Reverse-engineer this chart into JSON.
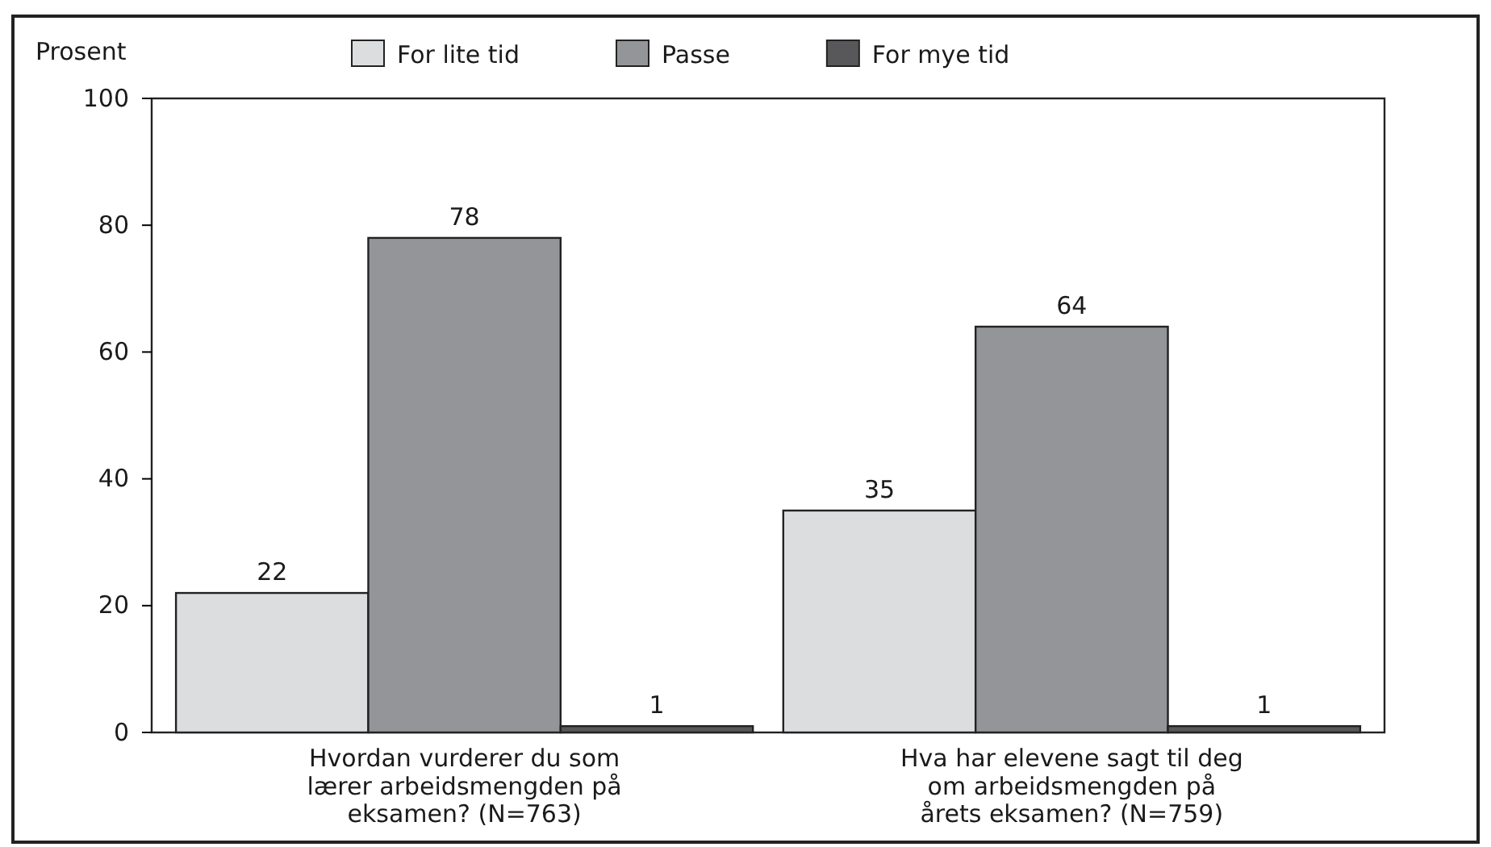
{
  "chart_data": {
    "type": "bar",
    "ylabel": "Prosent",
    "categories": [
      "Hvordan vurderer du som lærer arbeidsmengden på eksamen? (N=763)",
      "Hva har elevene sagt til deg om arbeidsmengden på årets eksamen? (N=759)"
    ],
    "series": [
      {
        "name": "For lite tid",
        "color": "#dcdddf",
        "values": [
          22,
          35
        ]
      },
      {
        "name": "Passe",
        "color": "#949598",
        "values": [
          78,
          64
        ]
      },
      {
        "name": "For mye tid",
        "color": "#58585a",
        "values": [
          1,
          1
        ]
      }
    ],
    "ylim": [
      0,
      100
    ],
    "yticks": [
      0,
      20,
      40,
      60,
      80,
      100
    ],
    "grid": false,
    "legend": "top",
    "data_labels": true
  }
}
